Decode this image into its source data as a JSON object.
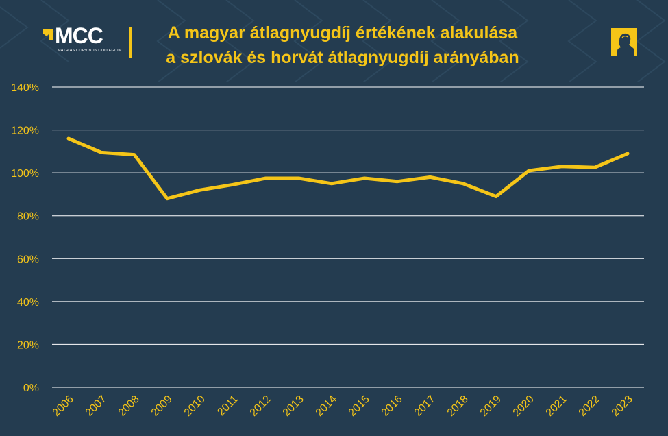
{
  "header": {
    "logo_text": "MCC",
    "logo_subtitle": "MATHIAS CORVINUS COLLEGIUM",
    "title_line1": "A magyar átlagnyugdíj értékének alakulása",
    "title_line2": "a szlovák és horvát átlagnyugdíj arányában",
    "badge_icon": "portrait-silhouette-icon"
  },
  "colors": {
    "background": "#243c50",
    "accent": "#f5c518",
    "grid": "#ffffff"
  },
  "chart_data": {
    "type": "line",
    "title": "A magyar átlagnyugdíj értékének alakulása a szlovák és horvát átlagnyugdíj arányában",
    "categories": [
      "2006",
      "2007",
      "2008",
      "2009",
      "2010",
      "2011",
      "2012",
      "2013",
      "2014",
      "2015",
      "2016",
      "2017",
      "2018",
      "2019",
      "2020",
      "2021",
      "2022",
      "2023"
    ],
    "series": [
      {
        "values": [
          116,
          109.5,
          108.5,
          88,
          92,
          94.5,
          97.5,
          97.5,
          95,
          97.5,
          96,
          98,
          95,
          89,
          101,
          103,
          102.5,
          109
        ]
      }
    ],
    "yticks": [
      "0%",
      "20%",
      "40%",
      "60%",
      "80%",
      "100%",
      "120%",
      "140%"
    ],
    "ylim": [
      0,
      140
    ],
    "ytick_step": 20,
    "y_format": "percent",
    "grid": true,
    "legend": "none",
    "xlabel": "",
    "ylabel": ""
  }
}
